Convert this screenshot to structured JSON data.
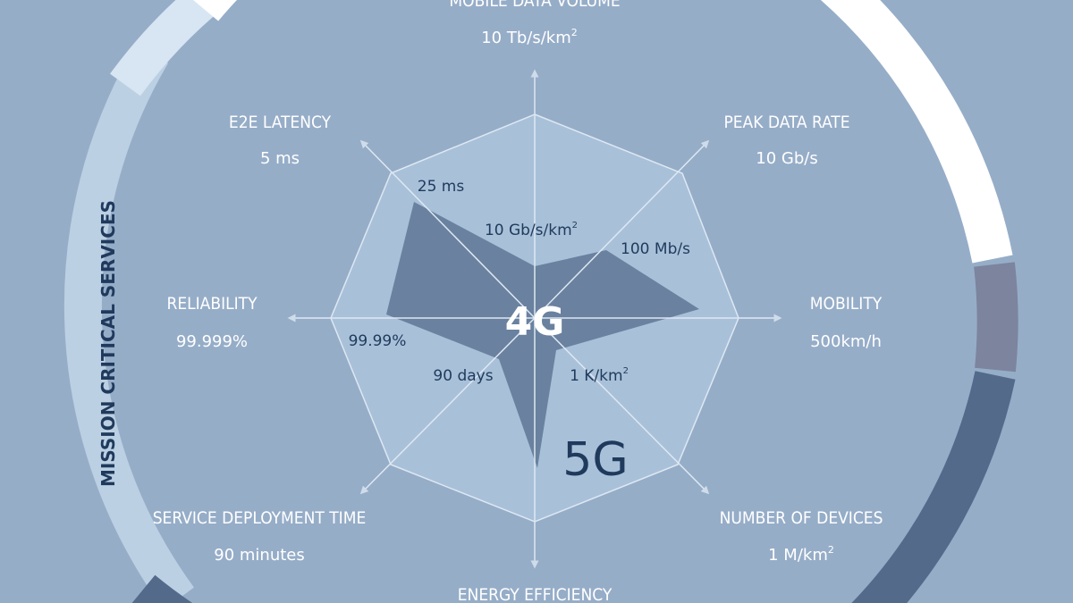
{
  "diagram": {
    "center_label": "4G",
    "outer_label": "5G",
    "ring_label": "MISSION CRITICAL SERVICES",
    "axes": [
      {
        "id": "mobile-data-volume",
        "title": "MOBILE DATA VOLUME",
        "target": "10 Tb/s/km",
        "target_sup": "2",
        "current": "10 Gb/s/km",
        "current_sup": "2"
      },
      {
        "id": "peak-data-rate",
        "title": "PEAK DATA RATE",
        "target": "10 Gb/s",
        "target_sup": "",
        "current": "100 Mb/s",
        "current_sup": ""
      },
      {
        "id": "mobility",
        "title": "MOBILITY",
        "target": "500km/h",
        "target_sup": "",
        "current": "",
        "current_sup": ""
      },
      {
        "id": "number-of-devices",
        "title": "NUMBER OF DEVICES",
        "target": "1 M/km",
        "target_sup": "2",
        "current": "1 K/km",
        "current_sup": "2"
      },
      {
        "id": "energy-efficiency",
        "title": "ENERGY EFFICIENCY",
        "target": "",
        "target_sup": "",
        "current": "",
        "current_sup": ""
      },
      {
        "id": "service-deployment-time",
        "title": "SERVICE DEPLOYMENT TIME",
        "target": "90 minutes",
        "target_sup": "",
        "current": "90 days",
        "current_sup": ""
      },
      {
        "id": "reliability",
        "title": "RELIABILITY",
        "target": "99.999%",
        "target_sup": "",
        "current": "99.99%",
        "current_sup": ""
      },
      {
        "id": "e2e-latency",
        "title": "E2E LATENCY",
        "target": "5 ms",
        "target_sup": "",
        "current": "25 ms",
        "current_sup": ""
      }
    ],
    "colors": {
      "background": "#96adc8",
      "octagon_fill": "#a9c0d9",
      "polygon_4g": "#6a819f",
      "ring_light": "#bcd0e3",
      "ring_lightest": "#d7e6f2",
      "ring_white": "#ffffff",
      "ring_grey": "#7c849e",
      "ring_dark": "#536a8b",
      "text_dark": "#1f3a5c",
      "text_light": "#ffffff"
    }
  }
}
